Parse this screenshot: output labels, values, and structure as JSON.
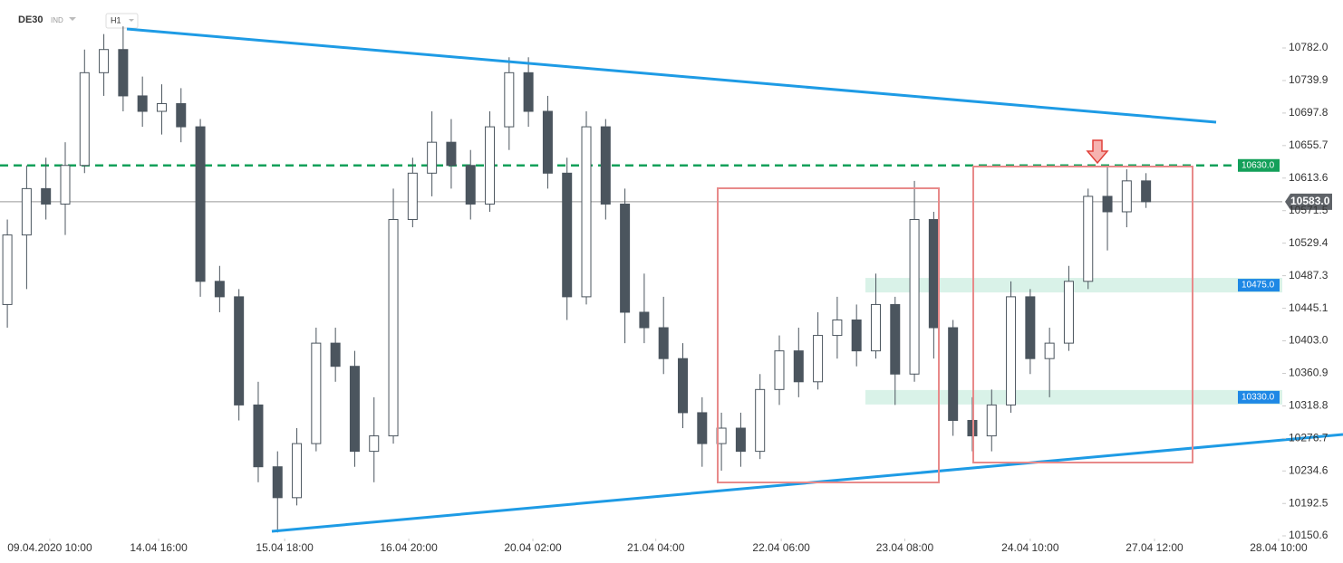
{
  "header": {
    "symbol": "DE30",
    "market": "IND",
    "timeframe": "H1"
  },
  "chart_data": {
    "type": "candlestick",
    "xlim": [
      -0.38,
      66.06
    ],
    "xticks": [
      {
        "value": 2.2,
        "label": "09.04.2020 10:00"
      },
      {
        "value": 7.84,
        "label": "14.04 16:00"
      },
      {
        "value": 14.37,
        "label": "15.04 18:00"
      },
      {
        "value": 20.8,
        "label": "16.04 20:00"
      },
      {
        "value": 27.23,
        "label": "20.04 02:00"
      },
      {
        "value": 33.6,
        "label": "21.04 04:00"
      },
      {
        "value": 40.1,
        "label": "22.04 06:00"
      },
      {
        "value": 46.5,
        "label": "23.04 08:00"
      },
      {
        "value": 53,
        "label": "24.04 10:00"
      },
      {
        "value": 59.44,
        "label": "27.04 12:00"
      },
      {
        "value": 65.87,
        "label": "28.04 10:00"
      }
    ],
    "ylim": [
      10147.1,
      10844.1
    ],
    "yticks": [
      {
        "value": 10150.6,
        "label": "10150.6"
      },
      {
        "value": 10192.5,
        "label": "10192.5"
      },
      {
        "value": 10234.6,
        "label": "10234.6"
      },
      {
        "value": 10276.7,
        "label": "10276.7"
      },
      {
        "value": 10318.8,
        "label": "10318.8"
      },
      {
        "value": 10360.9,
        "label": "10360.9"
      },
      {
        "value": 10403,
        "label": "10403.0"
      },
      {
        "value": 10445.1,
        "label": "10445.1"
      },
      {
        "value": 10487.3,
        "label": "10487.3"
      },
      {
        "value": 10529.4,
        "label": "10529.4"
      },
      {
        "value": 10571.5,
        "label": "10571.5"
      },
      {
        "value": 10613.6,
        "label": "10613.6"
      },
      {
        "value": 10655.7,
        "label": "10655.7"
      },
      {
        "value": 10697.8,
        "label": "10697.8"
      },
      {
        "value": 10739.9,
        "label": "10739.9"
      },
      {
        "value": 10782,
        "label": "10782.0"
      }
    ],
    "open": [
      10450,
      10540,
      10600,
      10580,
      10630,
      10750,
      10780,
      10720,
      10700,
      10710,
      10680,
      10480,
      10460,
      10320,
      10240,
      10200,
      10270,
      10400,
      10370,
      10260,
      10280,
      10560,
      10620,
      10660,
      10630,
      10580,
      10680,
      10750,
      10700,
      10620,
      10460,
      10680,
      10580,
      10440,
      10420,
      10380,
      10310,
      10270,
      10290,
      10260,
      10340,
      10390,
      10350,
      10410,
      10430,
      10390,
      10450,
      10360,
      10560,
      10420,
      10300,
      10280,
      10320,
      10460,
      10380,
      10400,
      10480,
      10590,
      10570,
      10610
    ],
    "high": [
      10560,
      10630,
      10640,
      10660,
      10780,
      10800,
      10810,
      10745,
      10735,
      10730,
      10690,
      10500,
      10470,
      10350,
      10260,
      10290,
      10420,
      10420,
      10390,
      10330,
      10600,
      10640,
      10700,
      10690,
      10650,
      10700,
      10770,
      10770,
      10720,
      10640,
      10700,
      10690,
      10600,
      10490,
      10460,
      10400,
      10330,
      10310,
      10310,
      10360,
      10410,
      10420,
      10440,
      10460,
      10450,
      10490,
      10460,
      10610,
      10570,
      10430,
      10330,
      10340,
      10480,
      10470,
      10420,
      10500,
      10600,
      10630,
      10625,
      10620
    ],
    "low": [
      10420,
      10470,
      10560,
      10540,
      10620,
      10720,
      10700,
      10680,
      10670,
      10660,
      10460,
      10440,
      10300,
      10220,
      10155,
      10190,
      10260,
      10350,
      10240,
      10220,
      10270,
      10550,
      10590,
      10600,
      10560,
      10570,
      10650,
      10680,
      10600,
      10430,
      10450,
      10560,
      10400,
      10400,
      10360,
      10290,
      10240,
      10235,
      10240,
      10250,
      10320,
      10330,
      10340,
      10380,
      10370,
      10380,
      10320,
      10350,
      10380,
      10280,
      10260,
      10260,
      10310,
      10360,
      10330,
      10390,
      10470,
      10520,
      10550,
      10575
    ],
    "close": [
      10540,
      10600,
      10580,
      10630,
      10750,
      10780,
      10720,
      10700,
      10710,
      10680,
      10480,
      10460,
      10320,
      10240,
      10200,
      10270,
      10400,
      10370,
      10260,
      10280,
      10560,
      10620,
      10660,
      10630,
      10580,
      10680,
      10750,
      10700,
      10620,
      10460,
      10680,
      10580,
      10440,
      10420,
      10380,
      10310,
      10270,
      10290,
      10260,
      10340,
      10390,
      10350,
      10410,
      10430,
      10390,
      10450,
      10360,
      10560,
      10420,
      10300,
      10280,
      10320,
      10460,
      10380,
      10400,
      10480,
      10590,
      10570,
      10610,
      10583
    ],
    "levels": [
      {
        "value": 10630,
        "label": "10630.0",
        "color": "#14a05a",
        "style": "dashed"
      },
      {
        "value": 10475,
        "label": "10475.0",
        "color": "#1e88e5",
        "style": "zone"
      },
      {
        "value": 10330,
        "label": "10330.0",
        "color": "#1e88e5",
        "style": "zone"
      }
    ],
    "current_price": {
      "value": 10583,
      "label": "10583.0",
      "color": "#5f6368"
    }
  }
}
